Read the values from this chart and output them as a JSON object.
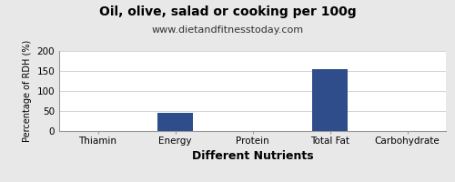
{
  "title": "Oil, olive, salad or cooking per 100g",
  "subtitle": "www.dietandfitnesstoday.com",
  "xlabel": "Different Nutrients",
  "ylabel": "Percentage of RDH (%)",
  "categories": [
    "Thiamin",
    "Energy",
    "Protein",
    "Total Fat",
    "Carbohydrate"
  ],
  "values": [
    0,
    45,
    0,
    155,
    0
  ],
  "bar_color": "#2e4d8a",
  "ylim": [
    0,
    200
  ],
  "yticks": [
    0,
    50,
    100,
    150,
    200
  ],
  "background_color": "#e8e8e8",
  "plot_bg_color": "#ffffff",
  "title_fontsize": 10,
  "subtitle_fontsize": 8,
  "xlabel_fontsize": 9,
  "ylabel_fontsize": 7,
  "tick_fontsize": 7.5,
  "bar_width": 0.45
}
